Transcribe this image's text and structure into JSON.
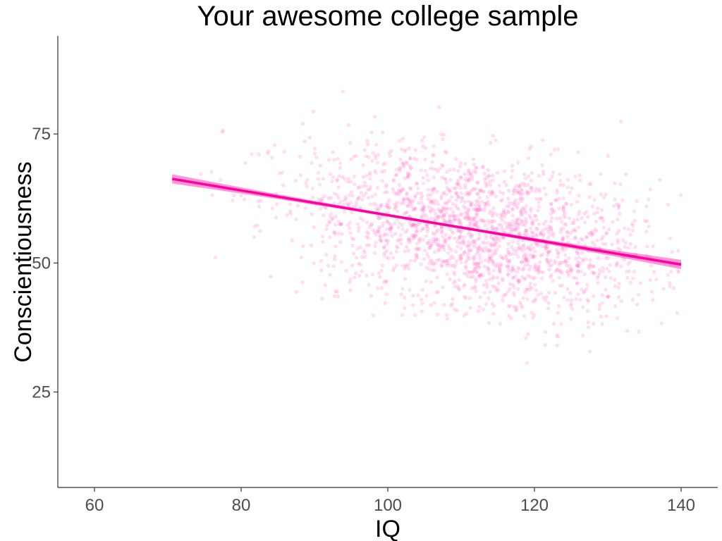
{
  "chart_data": {
    "type": "scatter",
    "title": "Your awesome college sample",
    "xlabel": "IQ",
    "ylabel": "Conscientiousness",
    "xlim": [
      55,
      145
    ],
    "ylim": [
      6.5,
      94
    ],
    "x_ticks": [
      60,
      80,
      100,
      120,
      140
    ],
    "y_ticks": [
      25,
      50,
      75
    ],
    "grid": false,
    "legend": "none",
    "point_color": "#ff69c6",
    "point_opacity": 0.22,
    "line_color": "#ff00a0",
    "band_color": "#ff40b4",
    "scatter_summary": {
      "approx_n": 2000,
      "x_range": [
        70,
        140
      ],
      "y_range": [
        30,
        89
      ],
      "x_center": 112,
      "x_spread": 12,
      "y_spread": 7.5
    },
    "fit": {
      "x": [
        70.6,
        140
      ],
      "y": [
        66.3,
        49.7
      ],
      "band_halfwidth_ends": 0.9,
      "band_halfwidth_center": 0.25
    }
  }
}
